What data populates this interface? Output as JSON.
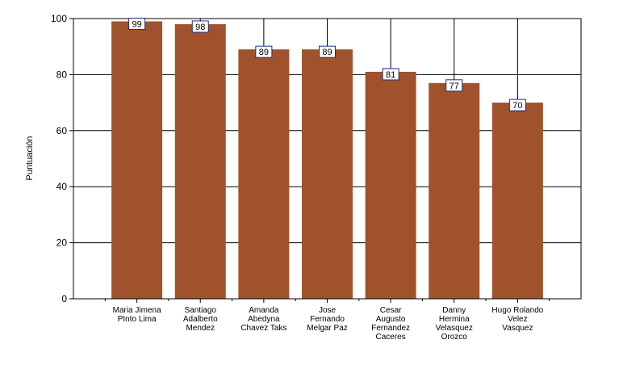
{
  "chart_data": {
    "type": "bar",
    "ylabel": "Puntuación",
    "xlabel": "",
    "ylim": [
      0,
      100
    ],
    "yticks": [
      0,
      20,
      40,
      60,
      80,
      100
    ],
    "grid": "horizontal and vertical at category centers",
    "categories": [
      [
        "Maria Jimena",
        "PInto Lima"
      ],
      [
        "Santiago",
        "Adalberto",
        "Mendez"
      ],
      [
        "Amanda",
        "Abedyna",
        "Chavez Taks"
      ],
      [
        "Jose",
        "Fernando",
        "Melgar Paz"
      ],
      [
        "Cesar",
        "Augusto",
        "Fernandez",
        "Caceres"
      ],
      [
        "Danny",
        "Hermina",
        "Velasquez",
        "Orozco"
      ],
      [
        "Hugo Rolando",
        "Velez",
        "Vasquez"
      ]
    ],
    "values": [
      99,
      98,
      89,
      89,
      81,
      77,
      70
    ],
    "bar_color": "#A0522D",
    "label_border_color": "#1F2F7A"
  }
}
